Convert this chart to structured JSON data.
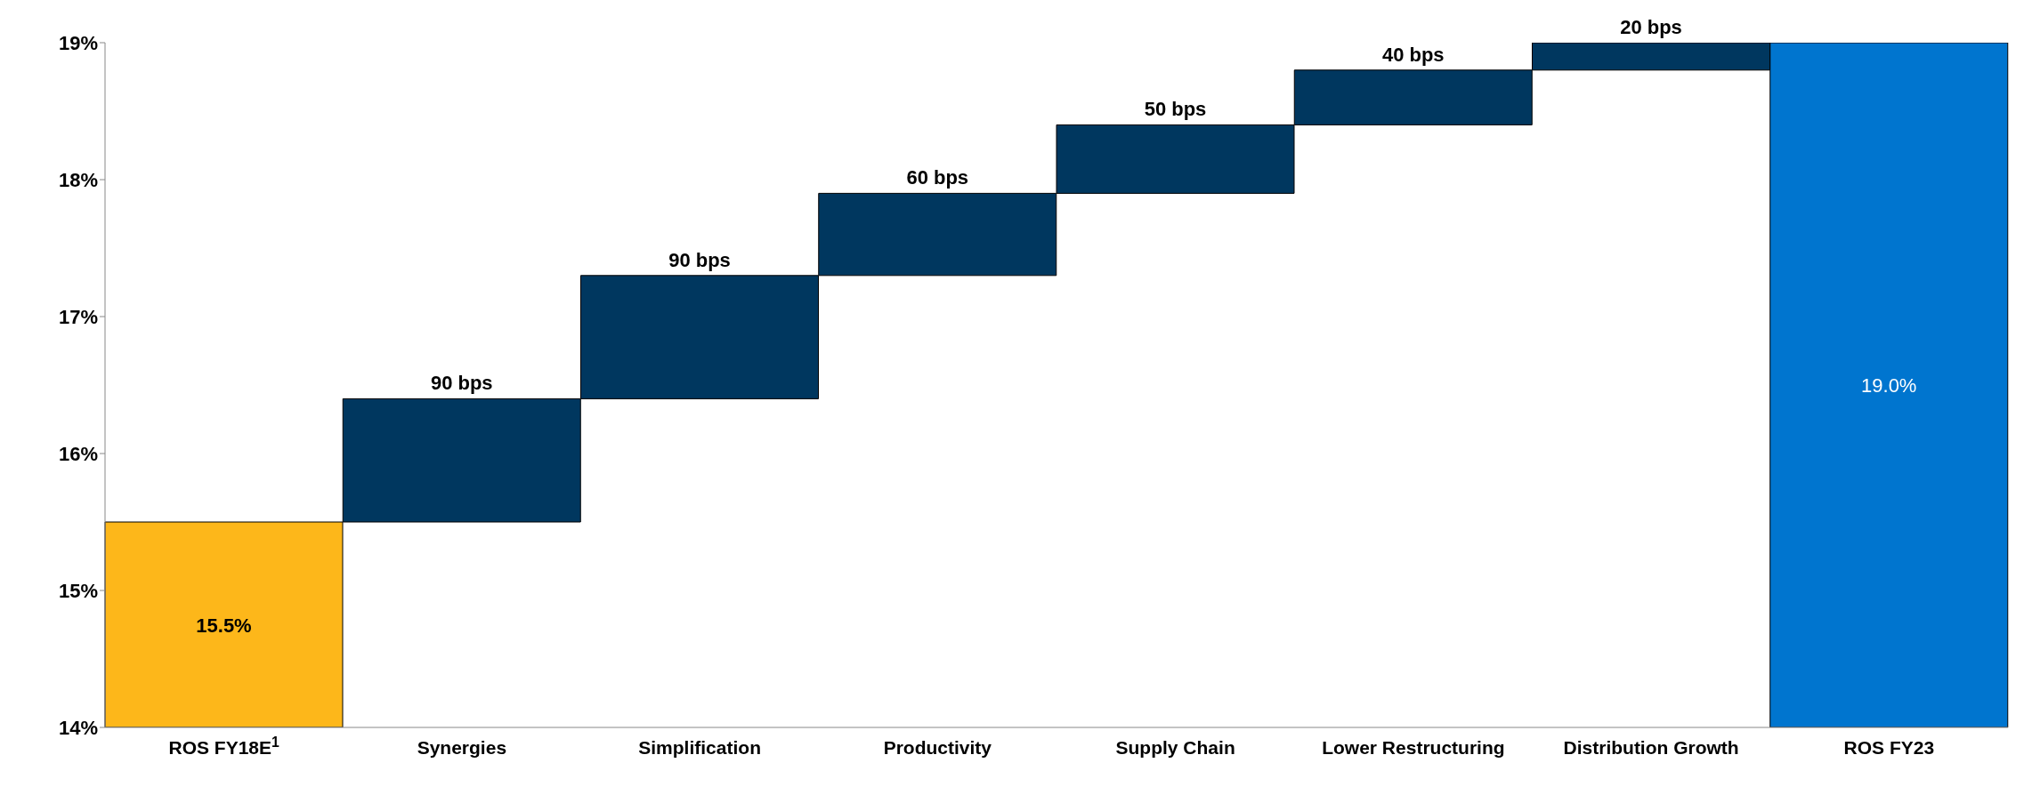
{
  "chart_data": {
    "type": "bar",
    "categories": [
      "ROS FY18E$^{1}$",
      "Synergies",
      "Simplification",
      "Productivity",
      "Supply Chain",
      "Lower Restructuring",
      "Distribution Growth",
      "ROS FY23"
    ],
    "values": [
      1.5,
      0.9,
      0.9,
      0.6,
      0.5,
      0.4,
      0.2,
      5.0
    ],
    "base": [
      14,
      15.5,
      16.4,
      17.3,
      17.9,
      18.4,
      18.8,
      14
    ],
    "colors": [
      "#fdb71a",
      "#00375f",
      "#00375f",
      "#00375f",
      "#00375f",
      "#00375f",
      "#00375f",
      "#0075cf"
    ],
    "value_labels": [
      "15.5%",
      null,
      null,
      null,
      null,
      null,
      null,
      "19.0%"
    ],
    "annotations": [
      {
        "text": "90 bps",
        "x": "Synergies",
        "y": 16.4
      },
      {
        "text": "90 bps",
        "x": "Simplification",
        "y": 17.3
      },
      {
        "text": "60 bps",
        "x": "Productivity",
        "y": 17.9
      },
      {
        "text": "50 bps",
        "x": "Supply Chain",
        "y": 18.4
      },
      {
        "text": "40 bps",
        "x": "Lower Restructuring",
        "y": 18.8
      },
      {
        "text": "20 bps",
        "x": "Distribution Growth",
        "y": 19.0
      }
    ],
    "ylim": [
      14,
      19
    ],
    "yticks": [
      {
        "value": 14,
        "label": "14%"
      },
      {
        "value": 15,
        "label": "15%"
      },
      {
        "value": 16,
        "label": "16%"
      },
      {
        "value": 17,
        "label": "17%"
      },
      {
        "value": 18,
        "label": "18%"
      },
      {
        "value": 19,
        "label": "19%"
      }
    ],
    "grid": false,
    "legend": false
  }
}
